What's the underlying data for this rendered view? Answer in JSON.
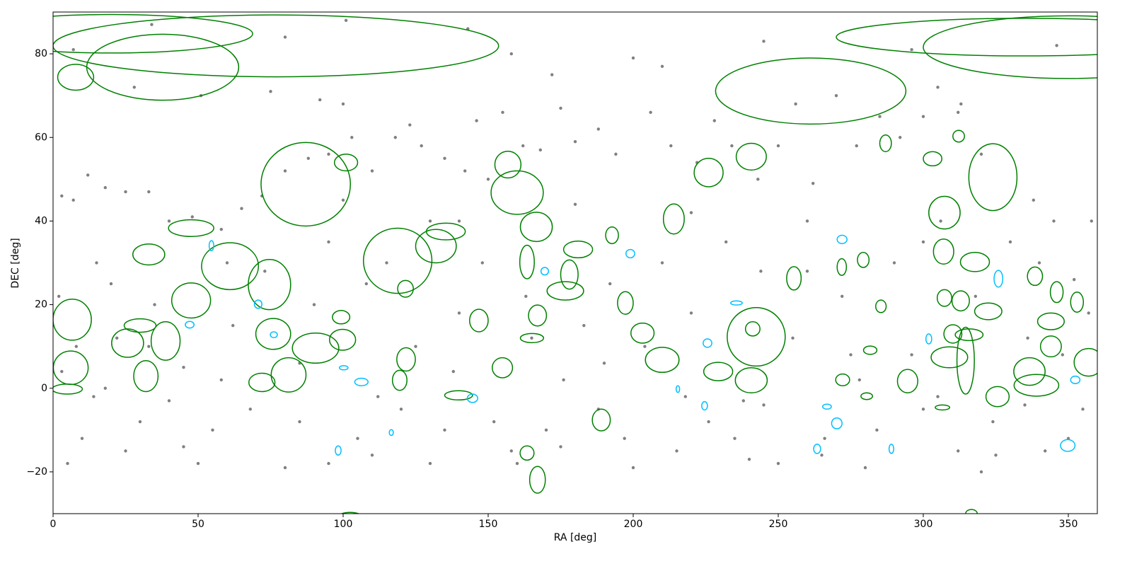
{
  "chart_data": {
    "type": "scatter",
    "xlabel": "RA [deg]",
    "ylabel": "DEC [deg]",
    "xlim": [
      0,
      360
    ],
    "ylim": [
      -30,
      90
    ],
    "xticks": [
      0,
      50,
      100,
      150,
      200,
      250,
      300,
      350
    ],
    "yticks": [
      {
        "value": -20,
        "label": "−20"
      },
      0,
      20,
      40,
      60,
      80
    ],
    "series": [
      {
        "marker": "dot",
        "color": "#808080",
        "x": [
          3,
          7,
          12,
          18,
          25,
          33,
          40,
          48,
          58,
          65,
          72,
          80,
          88,
          95,
          103,
          110,
          118,
          123,
          127,
          135,
          142,
          146,
          150,
          155,
          162,
          168,
          175,
          180,
          188,
          194,
          200,
          206,
          213,
          222,
          228,
          234,
          243,
          250,
          256,
          262,
          270,
          277,
          285,
          292,
          300,
          305,
          312,
          320,
          338,
          345,
          352,
          358,
          7,
          34,
          80,
          101,
          143,
          158,
          172,
          210,
          245,
          296,
          346,
          28,
          51,
          75,
          92,
          100,
          313,
          2,
          8,
          14,
          20,
          22,
          30,
          35,
          40,
          45,
          55,
          62,
          68,
          73,
          85,
          90,
          95,
          105,
          108,
          115,
          120,
          125,
          130,
          135,
          140,
          148,
          152,
          158,
          163,
          170,
          176,
          183,
          188,
          192,
          197,
          204,
          210,
          215,
          220,
          226,
          232,
          238,
          244,
          250,
          255,
          260,
          266,
          272,
          278,
          284,
          290,
          296,
          300,
          306,
          312,
          318,
          324,
          330,
          336,
          342,
          348,
          355,
          5,
          25,
          50,
          80,
          110,
          160,
          200,
          240,
          280,
          320,
          15,
          60,
          100,
          140,
          180,
          220,
          260,
          300,
          340,
          10,
          45,
          95,
          130,
          175,
          235,
          265,
          325,
          350,
          3,
          18,
          33,
          58,
          85,
          112,
          138,
          165,
          190,
          218,
          245,
          275,
          305,
          335,
          357
        ],
        "y": [
          46,
          45,
          51,
          48,
          47,
          47,
          40,
          41,
          38,
          43,
          46,
          52,
          55,
          56,
          60,
          52,
          60,
          63,
          58,
          55,
          52,
          64,
          50,
          66,
          58,
          57,
          67,
          59,
          62,
          56,
          79,
          66,
          58,
          54,
          64,
          58,
          50,
          58,
          68,
          49,
          70,
          58,
          65,
          60,
          65,
          72,
          66,
          56,
          45,
          40,
          26,
          40,
          81,
          87,
          84,
          88,
          86,
          80,
          75,
          77,
          83,
          81,
          82,
          72,
          70,
          71,
          69,
          68,
          68,
          22,
          10,
          -2,
          25,
          12,
          -8,
          20,
          -3,
          5,
          -10,
          15,
          -5,
          28,
          -8,
          20,
          35,
          -12,
          25,
          30,
          -5,
          10,
          40,
          -10,
          18,
          30,
          -8,
          -15,
          22,
          -10,
          2,
          15,
          -5,
          25,
          -12,
          10,
          30,
          -15,
          18,
          -8,
          35,
          -3,
          28,
          -18,
          12,
          40,
          -12,
          22,
          2,
          -10,
          30,
          8,
          -5,
          40,
          -15,
          22,
          -8,
          35,
          12,
          -15,
          8,
          -5,
          -18,
          -15,
          -18,
          -19,
          -16,
          -18,
          -19,
          -17,
          -19,
          -20,
          30,
          30,
          45,
          40,
          44,
          42,
          28,
          35,
          30,
          -12,
          -14,
          -18,
          -18,
          -14,
          -12,
          -16,
          -16,
          -12,
          4,
          0,
          10,
          2,
          6,
          -2,
          4,
          12,
          6,
          -2,
          -4,
          8,
          -2,
          -4,
          18
        ]
      },
      {
        "marker": "ellipse",
        "color": "#008000",
        "x": [
          37.8,
          76.8,
          20,
          7.8,
          261.2,
          335,
          350,
          87.1,
          101,
          47.6,
          33,
          61,
          74.6,
          118.8,
          132,
          135.4,
          156.8,
          160,
          166.6,
          163.4,
          176.6,
          178,
          181,
          192.7,
          214,
          226,
          240.7,
          242.4,
          240.7,
          229.3,
          255.4,
          307.3,
          324,
          303.2,
          312.2,
          287,
          317.8,
          307,
          322.4,
          314.6,
          309,
          339,
          336.6,
          357,
          344,
          344,
          338.5,
          346,
          294.6,
          325.6,
          6.6,
          6.1,
          4.9,
          25.7,
          38.8,
          47.6,
          32,
          30,
          75.9,
          90.5,
          81.2,
          72,
          99.8,
          99.3,
          121.7,
          119.5,
          121.5,
          146.8,
          139.8,
          154.9,
          167,
          165.1,
          189,
          167,
          163.4,
          203.2,
          210,
          197.3,
          271.9,
          279.3,
          285.4,
          307.3,
          312.9,
          310.2,
          315.8,
          353,
          102.4,
          316.6,
          272.2,
          241.2,
          280.5,
          306.6,
          281.7
        ],
        "y": [
          76.8,
          81.9,
          84.8,
          74.4,
          71.1,
          84,
          81.6,
          48.8,
          54,
          38.3,
          32,
          29.2,
          24.8,
          30.5,
          34,
          37.5,
          53.5,
          46.8,
          38.6,
          30.2,
          23.3,
          27.2,
          33.2,
          36.6,
          40.5,
          51.6,
          55.4,
          12.3,
          1.9,
          4,
          26.3,
          42,
          50.5,
          54.9,
          60.3,
          58.6,
          30.2,
          32.7,
          18.4,
          6.6,
          7.4,
          0.7,
          4,
          6.2,
          16,
          10,
          26.8,
          23,
          1.7,
          -2,
          16.4,
          4.9,
          -0.2,
          10.8,
          11.3,
          21,
          2.9,
          15,
          13,
          9.6,
          3.2,
          1.4,
          11.6,
          17,
          6.9,
          1.9,
          23.8,
          16.2,
          -1.7,
          4.9,
          17.4,
          12,
          -7.6,
          -21.9,
          -15.5,
          13.2,
          6.8,
          20.4,
          29,
          30.7,
          19.6,
          21.6,
          20.9,
          13,
          12.8,
          20.6,
          -32.2,
          -30,
          2,
          14.2,
          -1.9,
          -4.6,
          9.1
        ],
        "rx": [
          26.2,
          76.8,
          48.8,
          6.2,
          32.8,
          65,
          50,
          15.4,
          4,
          7.8,
          5.5,
          9.8,
          7.3,
          11.8,
          7,
          6.7,
          4.5,
          9,
          5.5,
          2.5,
          6.3,
          3,
          5,
          2.2,
          3.6,
          5,
          5.2,
          10,
          5.5,
          5,
          2.5,
          5.4,
          8.3,
          3.2,
          2,
          2,
          5,
          3.5,
          4.7,
          3,
          6.3,
          7.7,
          5.4,
          5,
          4.6,
          3.6,
          2.6,
          2.2,
          3.5,
          4,
          6.6,
          6,
          5.2,
          5.5,
          5,
          6.7,
          4.2,
          5.5,
          6,
          8,
          6,
          4.5,
          4.5,
          3,
          3.2,
          2.5,
          2.7,
          3.2,
          4.8,
          3.5,
          3.1,
          4,
          3.1,
          2.7,
          2.4,
          4,
          5.8,
          2.7,
          1.6,
          2,
          1.8,
          2.5,
          3,
          3.1,
          4.8,
          2.2,
          6,
          2,
          2.4,
          2.5,
          2,
          2.5,
          2.3
        ],
        "ry": [
          7.9,
          7.4,
          4.6,
          3.1,
          7.9,
          4.5,
          7.5,
          10,
          2,
          2,
          2.5,
          5.6,
          6,
          7.8,
          4,
          2,
          3.2,
          5.2,
          3.5,
          4,
          2.2,
          3.5,
          2,
          2,
          3.6,
          3.4,
          3.2,
          7,
          3,
          2.2,
          2.8,
          3.9,
          8,
          1.7,
          1.4,
          2,
          2.3,
          3,
          2,
          8,
          2.5,
          2.6,
          3.3,
          3.3,
          2,
          2.5,
          2.2,
          2.5,
          2.8,
          2.4,
          4.9,
          4,
          1.2,
          3.4,
          4.6,
          4.2,
          3.7,
          1.6,
          3.7,
          3.6,
          4.1,
          2.2,
          2.5,
          1.6,
          2.8,
          2.4,
          2,
          2.7,
          1.1,
          2.4,
          2.5,
          1.1,
          2.6,
          3.2,
          1.7,
          2.4,
          3,
          2.7,
          2,
          1.8,
          1.5,
          2,
          2.4,
          2.2,
          1.4,
          2.4,
          2.5,
          1,
          1.4,
          1.7,
          0.8,
          0.6,
          1
        ]
      },
      {
        "marker": "ellipse",
        "color": "#00bfff",
        "x": [
          199,
          272,
          325.9,
          349.8,
          270.2,
          263.4,
          224.6,
          225.6,
          169.5,
          144.6,
          106.3,
          100.2,
          98.3,
          76.1,
          70.7,
          54.6,
          47.1,
          116.6,
          235.6,
          289,
          301.9,
          352.4,
          266.8,
          215.4
        ],
        "y": [
          32.2,
          35.6,
          26.2,
          -13.7,
          -8.4,
          -14.5,
          -4.2,
          10.8,
          28,
          -2.4,
          1.5,
          4.9,
          -14.9,
          12.8,
          20.1,
          34.1,
          15.2,
          -10.6,
          20.4,
          -14.5,
          11.8,
          2,
          -4.4,
          -0.2
        ],
        "rx": [
          1.5,
          1.7,
          1.5,
          2.5,
          1.8,
          1.2,
          1,
          1.5,
          1.3,
          1.8,
          2.3,
          1.5,
          1,
          1.2,
          1.3,
          0.8,
          1.5,
          0.7,
          2,
          0.8,
          1,
          1.6,
          1.5,
          0.6
        ],
        "ry": [
          1,
          1,
          2,
          1.4,
          1.3,
          1.1,
          1,
          1,
          0.9,
          1,
          0.9,
          0.5,
          1.1,
          0.7,
          1,
          1.2,
          0.8,
          0.7,
          0.5,
          1.1,
          1.2,
          0.9,
          0.6,
          0.8
        ]
      }
    ]
  }
}
